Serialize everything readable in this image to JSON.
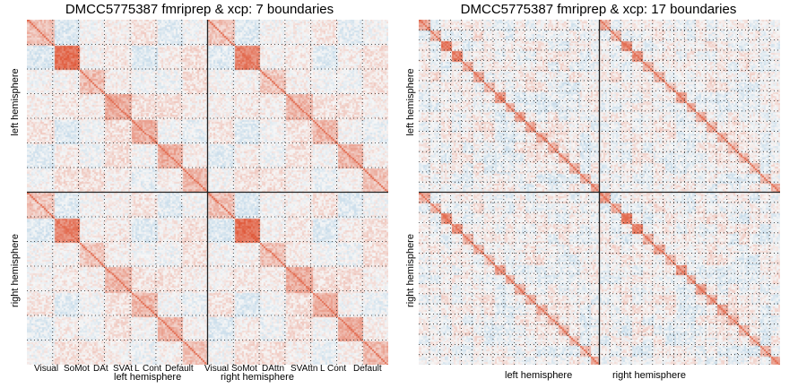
{
  "chart_data": [
    {
      "type": "heatmap",
      "title": "DMCC5775387 fmriprep & xcp: 7 boundaries",
      "ylabel_top": "left hemisphere",
      "ylabel_bottom": "right hemisphere",
      "xlabel_left": "left hemisphere",
      "xlabel_right": "right hemisphere",
      "networks": [
        "Visual",
        "SoMot",
        "DAt",
        "SVAt",
        "L",
        "Cont",
        "Default"
      ],
      "networks_right": [
        "Visual",
        "SoMot",
        "DAttn",
        "SVAttn",
        "L",
        "Cont",
        "Default"
      ],
      "boundaries_per_hemisphere": 7,
      "colors": {
        "positive": "#e0593a",
        "negative": "#9ec5e0",
        "zero": "#f7f7f7"
      }
    },
    {
      "type": "heatmap",
      "title": "DMCC5775387 fmriprep & xcp: 17 boundaries",
      "ylabel_top": "left hemisphere",
      "ylabel_bottom": "right hemisphere",
      "xlabel_left": "left hemisphere",
      "xlabel_right": "right hemisphere",
      "boundaries_per_hemisphere": 17,
      "colors": {
        "positive": "#e0593a",
        "negative": "#9ec5e0",
        "zero": "#f7f7f7"
      }
    }
  ]
}
